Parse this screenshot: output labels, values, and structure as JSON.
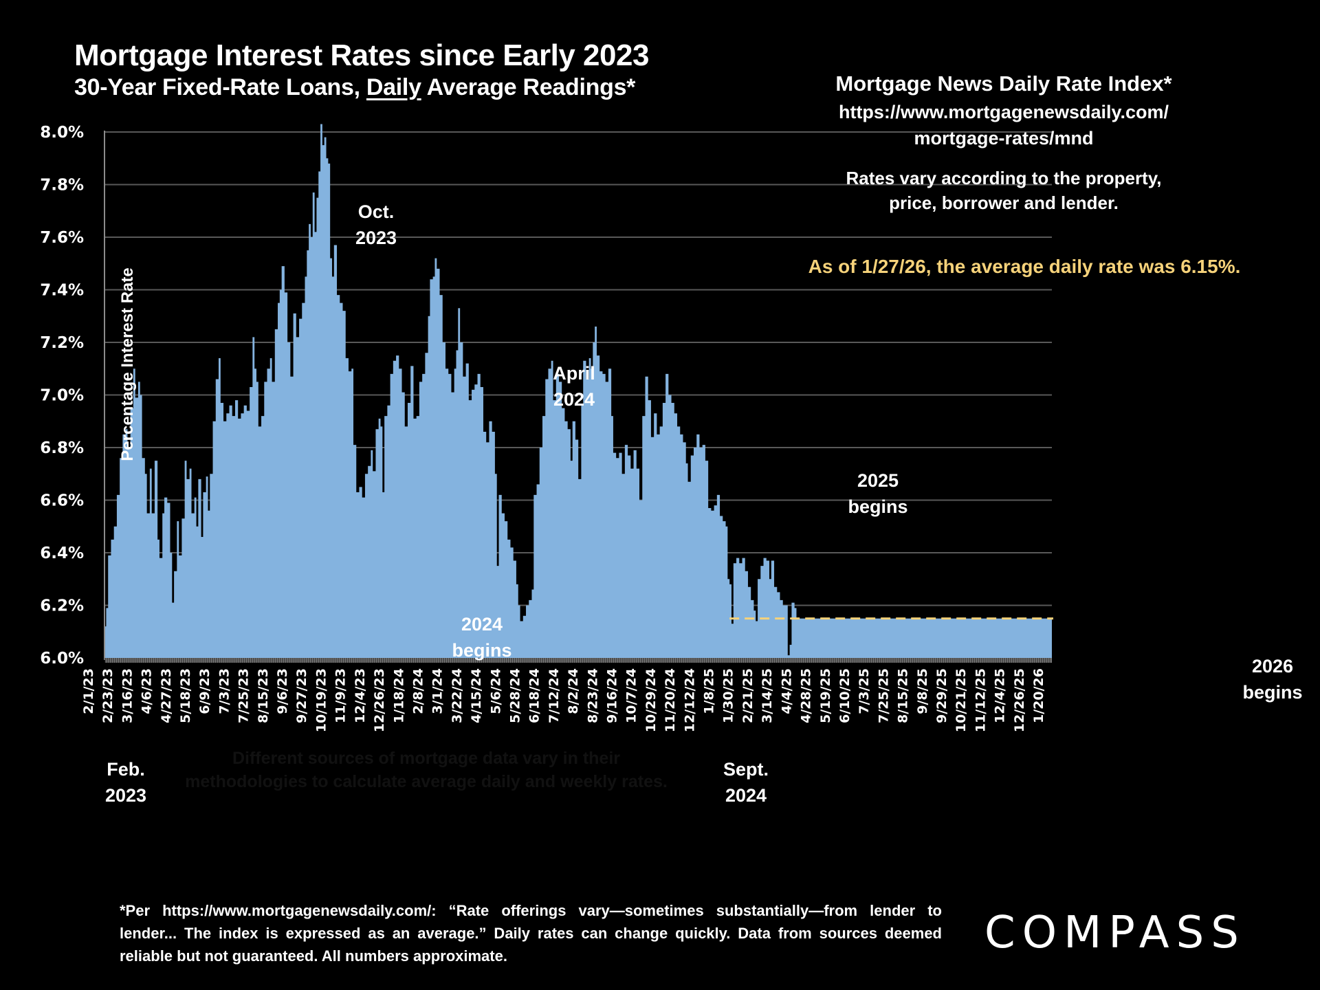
{
  "header": {
    "title": "Mortgage Interest Rates since Early 2023",
    "subtitle_pre": "30-Year Fixed-Rate Loans, ",
    "subtitle_underlined": "Daily",
    "subtitle_post": " Average Readings*"
  },
  "source_box": {
    "title": "Mortgage News Daily Rate Index*",
    "url_line1": "https://www.mortgagenewsdaily.com/",
    "url_line2": "mortgage-rates/mnd",
    "note_line1": "Rates vary according to the property,",
    "note_line2": "price, borrower and lender.",
    "as_of": "As of 1/27/26, the average daily rate was 6.15%."
  },
  "footnote": "*Per https://www.mortgagenewsdaily.com/: “Rate offerings vary—sometimes substantially—from lender to lender... The index is expressed as an average.” Daily rates can change quickly. Data from sources deemed reliable but not guaranteed. All numbers approximate.",
  "logo": "COMPASS",
  "colors": {
    "background": "#000000",
    "area_fill": "#84b3df",
    "gridline": "#595959",
    "highlight_text": "#f6d27a",
    "reference_line": "#f6d27a"
  },
  "chart_data": {
    "type": "area",
    "title": "Mortgage Interest Rates since Early 2023",
    "subtitle": "30-Year Fixed-Rate Loans, Daily Average Readings*",
    "xlabel": "",
    "ylabel": "Percentage Interest  Rate",
    "ylim": [
      6.0,
      8.0
    ],
    "yticks": [
      "6.0%",
      "6.2%",
      "6.4%",
      "6.6%",
      "6.8%",
      "7.0%",
      "7.2%",
      "7.4%",
      "7.6%",
      "7.8%",
      "8.0%"
    ],
    "ytick_values": [
      6.0,
      6.2,
      6.4,
      6.6,
      6.8,
      7.0,
      7.2,
      7.4,
      7.6,
      7.8,
      8.0
    ],
    "grid": true,
    "xticks": [
      "2/1/23",
      "2/23/23",
      "3/16/23",
      "4/6/23",
      "4/27/23",
      "5/18/23",
      "6/9/23",
      "7/3/23",
      "7/25/23",
      "8/15/23",
      "9/6/23",
      "9/27/23",
      "10/19/23",
      "11/9/23",
      "12/4/23",
      "12/26/23",
      "1/18/24",
      "2/8/24",
      "3/1/24",
      "3/22/24",
      "4/15/24",
      "5/6/24",
      "5/28/24",
      "6/18/24",
      "7/12/24",
      "8/2/24",
      "8/23/24",
      "9/16/24",
      "10/7/24",
      "10/29/24",
      "11/20/24",
      "12/12/24",
      "1/8/25",
      "1/30/25",
      "2/21/25",
      "3/14/25",
      "4/4/25",
      "4/28/25",
      "5/19/25",
      "6/10/25",
      "7/3/25",
      "7/25/25",
      "8/15/25",
      "9/8/25",
      "9/29/25",
      "10/21/25",
      "11/12/25",
      "12/4/25",
      "12/26/25",
      "1/20/26"
    ],
    "x_unit": "tick index (one tick ≈ 15 business days)",
    "series": [
      {
        "name": "MND 30-Year Fixed Daily Rate (%)",
        "points": [
          [
            0.0,
            6.12
          ],
          [
            0.05,
            6.19
          ],
          [
            0.15,
            6.39
          ],
          [
            0.3,
            6.45
          ],
          [
            0.45,
            6.5
          ],
          [
            0.6,
            6.62
          ],
          [
            0.75,
            6.76
          ],
          [
            0.9,
            6.85
          ],
          [
            1.05,
            6.87
          ],
          [
            1.15,
            6.8
          ],
          [
            1.3,
            6.95
          ],
          [
            1.45,
            7.1
          ],
          [
            1.55,
            6.99
          ],
          [
            1.7,
            7.05
          ],
          [
            1.8,
            7.0
          ],
          [
            1.9,
            6.76
          ],
          [
            2.05,
            6.7
          ],
          [
            2.15,
            6.55
          ],
          [
            2.3,
            6.72
          ],
          [
            2.4,
            6.55
          ],
          [
            2.55,
            6.75
          ],
          [
            2.7,
            6.45
          ],
          [
            2.8,
            6.38
          ],
          [
            2.95,
            6.55
          ],
          [
            3.05,
            6.61
          ],
          [
            3.2,
            6.59
          ],
          [
            3.35,
            6.4
          ],
          [
            3.45,
            6.21
          ],
          [
            3.55,
            6.33
          ],
          [
            3.7,
            6.52
          ],
          [
            3.8,
            6.39
          ],
          [
            3.95,
            6.53
          ],
          [
            4.1,
            6.75
          ],
          [
            4.2,
            6.68
          ],
          [
            4.35,
            6.72
          ],
          [
            4.45,
            6.55
          ],
          [
            4.6,
            6.61
          ],
          [
            4.7,
            6.5
          ],
          [
            4.8,
            6.68
          ],
          [
            4.95,
            6.46
          ],
          [
            5.05,
            6.63
          ],
          [
            5.2,
            6.69
          ],
          [
            5.3,
            6.56
          ],
          [
            5.4,
            6.7
          ],
          [
            5.55,
            6.9
          ],
          [
            5.7,
            7.06
          ],
          [
            5.85,
            7.14
          ],
          [
            5.95,
            6.97
          ],
          [
            6.1,
            6.9
          ],
          [
            6.25,
            6.93
          ],
          [
            6.4,
            6.96
          ],
          [
            6.55,
            6.92
          ],
          [
            6.7,
            6.98
          ],
          [
            6.85,
            6.91
          ],
          [
            7.0,
            6.93
          ],
          [
            7.15,
            6.96
          ],
          [
            7.3,
            6.94
          ],
          [
            7.45,
            7.03
          ],
          [
            7.6,
            7.22
          ],
          [
            7.7,
            7.1
          ],
          [
            7.8,
            7.05
          ],
          [
            7.9,
            6.88
          ],
          [
            8.05,
            6.92
          ],
          [
            8.2,
            7.05
          ],
          [
            8.35,
            7.1
          ],
          [
            8.5,
            7.14
          ],
          [
            8.6,
            7.05
          ],
          [
            8.75,
            7.25
          ],
          [
            8.9,
            7.35
          ],
          [
            9.0,
            7.4
          ],
          [
            9.1,
            7.49
          ],
          [
            9.25,
            7.39
          ],
          [
            9.4,
            7.2
          ],
          [
            9.55,
            7.07
          ],
          [
            9.7,
            7.31
          ],
          [
            9.85,
            7.22
          ],
          [
            10.0,
            7.29
          ],
          [
            10.15,
            7.35
          ],
          [
            10.3,
            7.45
          ],
          [
            10.4,
            7.55
          ],
          [
            10.5,
            7.65
          ],
          [
            10.6,
            7.6
          ],
          [
            10.7,
            7.77
          ],
          [
            10.8,
            7.62
          ],
          [
            10.9,
            7.75
          ],
          [
            11.0,
            7.85
          ],
          [
            11.1,
            8.03
          ],
          [
            11.2,
            7.95
          ],
          [
            11.3,
            7.98
          ],
          [
            11.4,
            7.9
          ],
          [
            11.5,
            7.88
          ],
          [
            11.6,
            7.52
          ],
          [
            11.7,
            7.45
          ],
          [
            11.8,
            7.57
          ],
          [
            11.95,
            7.38
          ],
          [
            12.1,
            7.35
          ],
          [
            12.25,
            7.32
          ],
          [
            12.4,
            7.14
          ],
          [
            12.55,
            7.09
          ],
          [
            12.7,
            7.1
          ],
          [
            12.8,
            6.81
          ],
          [
            12.95,
            6.63
          ],
          [
            13.1,
            6.65
          ],
          [
            13.25,
            6.61
          ],
          [
            13.4,
            6.7
          ],
          [
            13.55,
            6.73
          ],
          [
            13.7,
            6.79
          ],
          [
            13.8,
            6.71
          ],
          [
            13.95,
            6.87
          ],
          [
            14.1,
            6.91
          ],
          [
            14.2,
            6.88
          ],
          [
            14.3,
            6.63
          ],
          [
            14.4,
            6.92
          ],
          [
            14.55,
            6.96
          ],
          [
            14.7,
            7.08
          ],
          [
            14.85,
            7.13
          ],
          [
            15.0,
            7.15
          ],
          [
            15.15,
            7.1
          ],
          [
            15.3,
            7.01
          ],
          [
            15.45,
            6.88
          ],
          [
            15.6,
            6.97
          ],
          [
            15.75,
            7.11
          ],
          [
            15.9,
            6.91
          ],
          [
            16.05,
            6.92
          ],
          [
            16.2,
            7.05
          ],
          [
            16.35,
            7.08
          ],
          [
            16.5,
            7.16
          ],
          [
            16.65,
            7.3
          ],
          [
            16.75,
            7.44
          ],
          [
            16.9,
            7.45
          ],
          [
            17.0,
            7.52
          ],
          [
            17.1,
            7.48
          ],
          [
            17.25,
            7.38
          ],
          [
            17.4,
            7.2
          ],
          [
            17.55,
            7.1
          ],
          [
            17.7,
            7.08
          ],
          [
            17.85,
            7.01
          ],
          [
            18.0,
            7.1
          ],
          [
            18.1,
            7.17
          ],
          [
            18.2,
            7.33
          ],
          [
            18.3,
            7.2
          ],
          [
            18.45,
            7.07
          ],
          [
            18.6,
            7.12
          ],
          [
            18.75,
            6.98
          ],
          [
            18.9,
            7.02
          ],
          [
            19.05,
            7.04
          ],
          [
            19.2,
            7.08
          ],
          [
            19.35,
            7.03
          ],
          [
            19.5,
            6.86
          ],
          [
            19.65,
            6.82
          ],
          [
            19.8,
            6.9
          ],
          [
            19.95,
            6.86
          ],
          [
            20.1,
            6.7
          ],
          [
            20.2,
            6.35
          ],
          [
            20.3,
            6.62
          ],
          [
            20.45,
            6.55
          ],
          [
            20.6,
            6.52
          ],
          [
            20.75,
            6.45
          ],
          [
            20.9,
            6.42
          ],
          [
            21.05,
            6.37
          ],
          [
            21.2,
            6.28
          ],
          [
            21.3,
            6.2
          ],
          [
            21.4,
            6.14
          ],
          [
            21.55,
            6.16
          ],
          [
            21.7,
            6.2
          ],
          [
            21.85,
            6.22
          ],
          [
            22.0,
            6.26
          ],
          [
            22.1,
            6.62
          ],
          [
            22.25,
            6.66
          ],
          [
            22.4,
            6.8
          ],
          [
            22.55,
            6.92
          ],
          [
            22.7,
            7.06
          ],
          [
            22.85,
            7.1
          ],
          [
            23.0,
            7.13
          ],
          [
            23.1,
            6.98
          ],
          [
            23.25,
            7.08
          ],
          [
            23.4,
            7.05
          ],
          [
            23.55,
            6.95
          ],
          [
            23.7,
            6.9
          ],
          [
            23.85,
            6.87
          ],
          [
            24.0,
            6.75
          ],
          [
            24.1,
            6.9
          ],
          [
            24.25,
            6.83
          ],
          [
            24.4,
            6.68
          ],
          [
            24.55,
            6.96
          ],
          [
            24.65,
            7.13
          ],
          [
            24.8,
            7.06
          ],
          [
            24.95,
            7.14
          ],
          [
            25.05,
            7.1
          ],
          [
            25.15,
            7.2
          ],
          [
            25.25,
            7.26
          ],
          [
            25.35,
            7.15
          ],
          [
            25.5,
            7.09
          ],
          [
            25.65,
            7.08
          ],
          [
            25.8,
            7.05
          ],
          [
            25.95,
            7.1
          ],
          [
            26.1,
            6.92
          ],
          [
            26.2,
            6.78
          ],
          [
            26.35,
            6.76
          ],
          [
            26.5,
            6.78
          ],
          [
            26.65,
            6.7
          ],
          [
            26.8,
            6.81
          ],
          [
            26.95,
            6.77
          ],
          [
            27.1,
            6.72
          ],
          [
            27.25,
            6.79
          ],
          [
            27.4,
            6.72
          ],
          [
            27.55,
            6.6
          ],
          [
            27.7,
            6.92
          ],
          [
            27.85,
            7.07
          ],
          [
            28.0,
            6.98
          ],
          [
            28.15,
            6.84
          ],
          [
            28.3,
            6.93
          ],
          [
            28.45,
            6.85
          ],
          [
            28.6,
            6.88
          ],
          [
            28.75,
            6.97
          ],
          [
            28.9,
            7.08
          ],
          [
            29.05,
            7.0
          ],
          [
            29.2,
            6.97
          ],
          [
            29.35,
            6.93
          ],
          [
            29.5,
            6.88
          ],
          [
            29.65,
            6.85
          ],
          [
            29.8,
            6.82
          ],
          [
            29.95,
            6.74
          ],
          [
            30.05,
            6.67
          ],
          [
            30.2,
            6.77
          ],
          [
            30.35,
            6.8
          ],
          [
            30.5,
            6.85
          ],
          [
            30.65,
            6.8
          ],
          [
            30.8,
            6.81
          ],
          [
            30.95,
            6.75
          ],
          [
            31.1,
            6.57
          ],
          [
            31.25,
            6.56
          ],
          [
            31.4,
            6.58
          ],
          [
            31.55,
            6.62
          ],
          [
            31.7,
            6.54
          ],
          [
            31.85,
            6.52
          ],
          [
            32.0,
            6.5
          ],
          [
            32.1,
            6.3
          ],
          [
            32.2,
            6.28
          ],
          [
            32.3,
            6.13
          ],
          [
            32.4,
            6.36
          ],
          [
            32.55,
            6.38
          ],
          [
            32.7,
            6.36
          ],
          [
            32.85,
            6.38
          ],
          [
            33.0,
            6.33
          ],
          [
            33.15,
            6.27
          ],
          [
            33.3,
            6.22
          ],
          [
            33.45,
            6.18
          ],
          [
            33.55,
            6.14
          ],
          [
            33.65,
            6.3
          ],
          [
            33.8,
            6.35
          ],
          [
            33.95,
            6.38
          ],
          [
            34.1,
            6.37
          ],
          [
            34.25,
            6.3
          ],
          [
            34.35,
            6.37
          ],
          [
            34.5,
            6.27
          ],
          [
            34.65,
            6.25
          ],
          [
            34.8,
            6.22
          ],
          [
            34.95,
            6.2
          ],
          [
            35.1,
            6.2
          ],
          [
            35.2,
            6.01
          ],
          [
            35.3,
            6.05
          ],
          [
            35.4,
            6.21
          ],
          [
            35.55,
            6.19
          ],
          [
            35.65,
            6.15
          ]
        ]
      }
    ],
    "reference_line": {
      "label": "Latest rate 6.15%",
      "value": 6.15,
      "style": "dashed",
      "from_tick": 32.2
    },
    "annotations": [
      {
        "id": "feb-2023",
        "line1": "Feb.",
        "line2": "2023",
        "color": "white"
      },
      {
        "id": "oct-2023",
        "line1": "Oct.",
        "line2": "2023",
        "color": "white"
      },
      {
        "id": "begin-2024",
        "line1": "2024",
        "line2": "begins",
        "color": "white"
      },
      {
        "id": "april-2024",
        "line1": "April",
        "line2": "2024",
        "color": "white"
      },
      {
        "id": "sept-2024",
        "line1": "Sept.",
        "line2": "2024",
        "color": "white"
      },
      {
        "id": "begin-2025",
        "line1": "2025",
        "line2": "begins",
        "color": "white"
      },
      {
        "id": "begin-2026",
        "line1": "2026",
        "line2": "begins",
        "color": "white"
      },
      {
        "id": "methodology-note",
        "line1": "Different sources of mortgage data vary in their",
        "line2": "methodologies to calculate average daily and weekly rates.",
        "color": "dark"
      }
    ]
  }
}
